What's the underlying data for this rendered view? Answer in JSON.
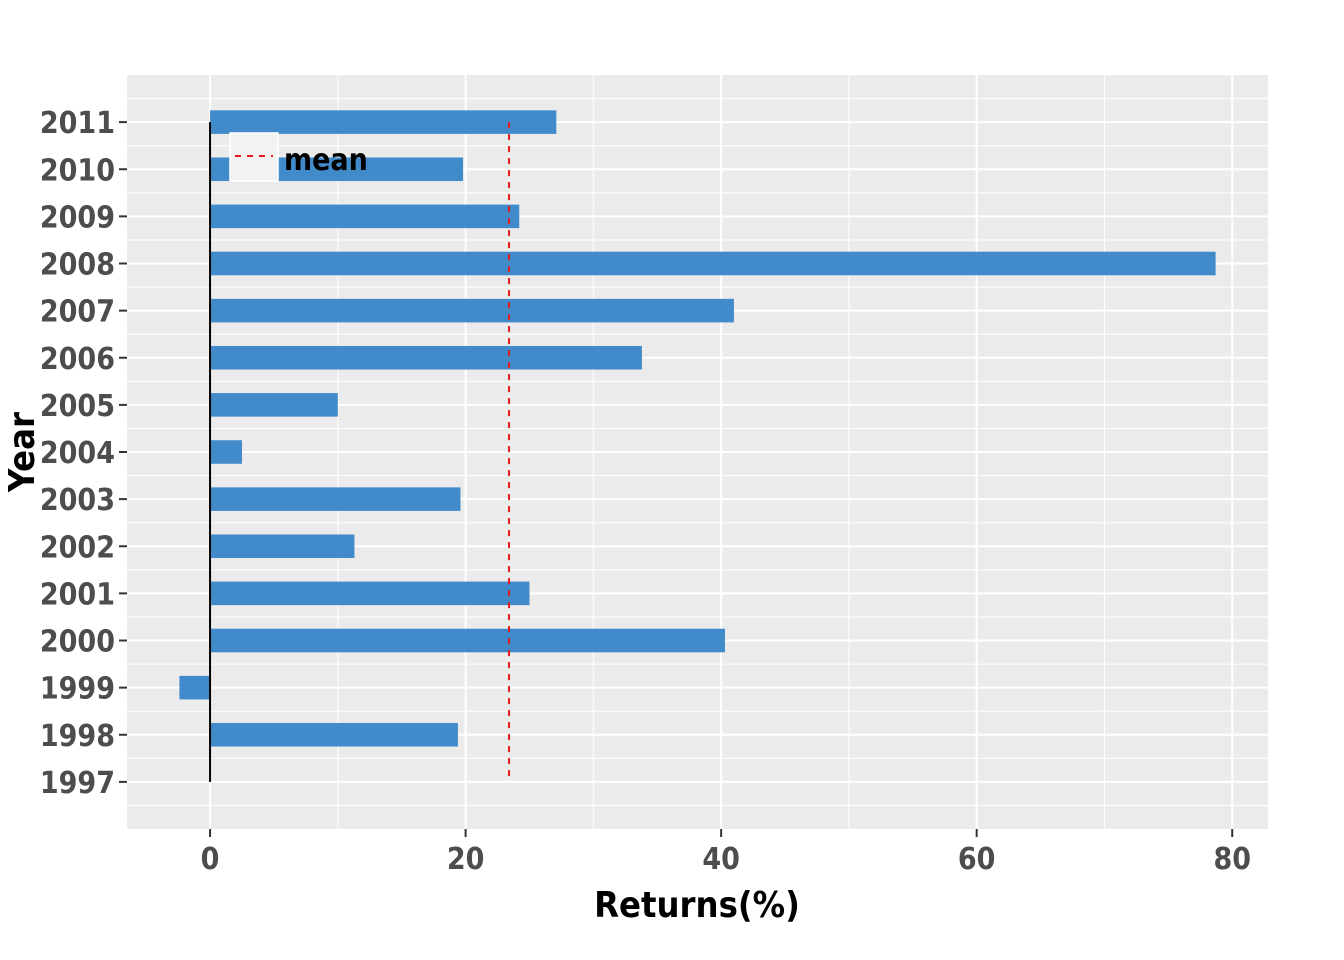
{
  "chart_data": {
    "type": "bar",
    "orientation": "horizontal",
    "categories": [
      "1997",
      "1998",
      "1999",
      "2000",
      "2001",
      "2002",
      "2003",
      "2004",
      "2005",
      "2006",
      "2007",
      "2008",
      "2009",
      "2010",
      "2011"
    ],
    "values": [
      0,
      19.4,
      -2.4,
      40.3,
      25.0,
      11.3,
      19.6,
      2.5,
      10.0,
      33.8,
      41.0,
      78.7,
      24.2,
      19.8,
      27.1
    ],
    "mean": 23.4,
    "legend": {
      "entries": [
        "mean"
      ],
      "placement": "top-left inside"
    },
    "xlabel": "Returns(%)",
    "ylabel": "Year",
    "xlim": [
      -6.5,
      82.8
    ],
    "xticks": [
      0,
      20,
      40,
      60,
      80
    ],
    "grid": true,
    "colors": {
      "bar": "#428bca",
      "mean_line": "#e41a1c",
      "panel": "#ebebeb",
      "grid": "#ffffff",
      "zero_line": "#000000"
    }
  }
}
